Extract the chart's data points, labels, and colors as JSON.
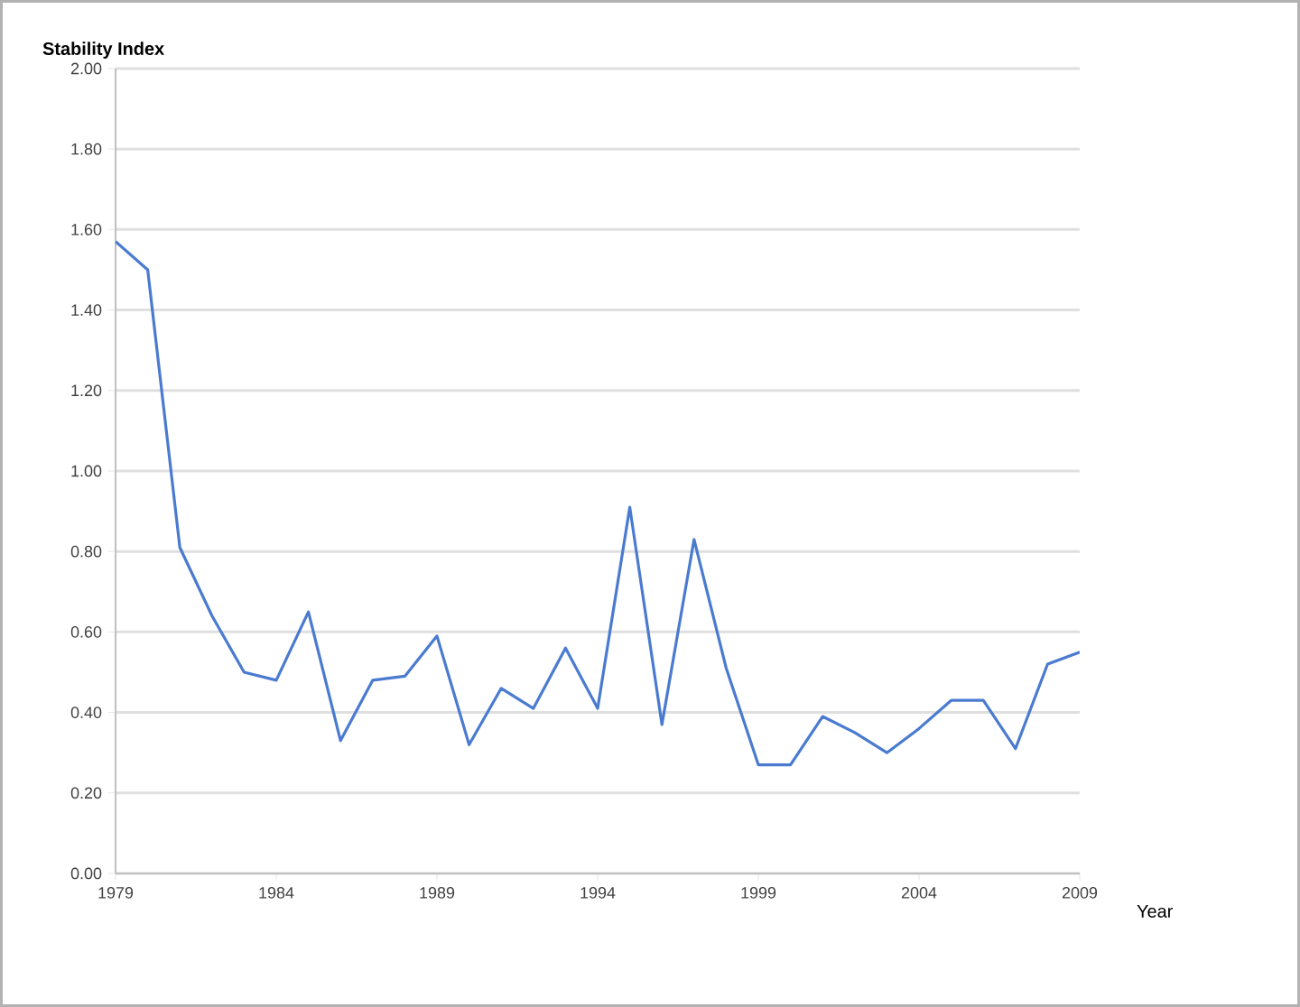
{
  "chart_data": {
    "type": "line",
    "ylabel": "Stability Index",
    "xlabel": "Year",
    "x": [
      1979,
      1980,
      1981,
      1982,
      1983,
      1984,
      1985,
      1986,
      1987,
      1988,
      1989,
      1990,
      1991,
      1992,
      1993,
      1994,
      1995,
      1996,
      1997,
      1998,
      1999,
      2000,
      2001,
      2002,
      2003,
      2004,
      2005,
      2006,
      2007,
      2008,
      2009
    ],
    "series": [
      {
        "color": "#4a7bd0",
        "values": [
          1.57,
          1.5,
          0.81,
          0.64,
          0.5,
          0.48,
          0.65,
          0.33,
          0.48,
          0.49,
          0.59,
          0.32,
          0.46,
          0.41,
          0.56,
          0.41,
          0.91,
          0.37,
          0.83,
          0.51,
          0.27,
          0.27,
          0.39,
          0.35,
          0.3,
          0.36,
          0.43,
          0.43,
          0.31,
          0.52,
          0.55
        ]
      }
    ],
    "xlim": [
      1979,
      2009
    ],
    "xticks": [
      1979,
      1984,
      1989,
      1994,
      1999,
      2004,
      2009
    ],
    "ylim": [
      0,
      2
    ],
    "yticks": [
      {
        "value": 0,
        "label": "0.00"
      },
      {
        "value": 0.2,
        "label": "0.20"
      },
      {
        "value": 0.4,
        "label": "0.40"
      },
      {
        "value": 0.6,
        "label": "0.60"
      },
      {
        "value": 0.8,
        "label": "0.80"
      },
      {
        "value": 1.0,
        "label": "1.00"
      },
      {
        "value": 1.2,
        "label": "1.20"
      },
      {
        "value": 1.4,
        "label": "1.40"
      },
      {
        "value": 1.6,
        "label": "1.60"
      },
      {
        "value": 1.8,
        "label": "1.80"
      },
      {
        "value": 2.0,
        "label": "2.00"
      }
    ],
    "grid": "y",
    "marker": "none",
    "line_style": "solid"
  }
}
